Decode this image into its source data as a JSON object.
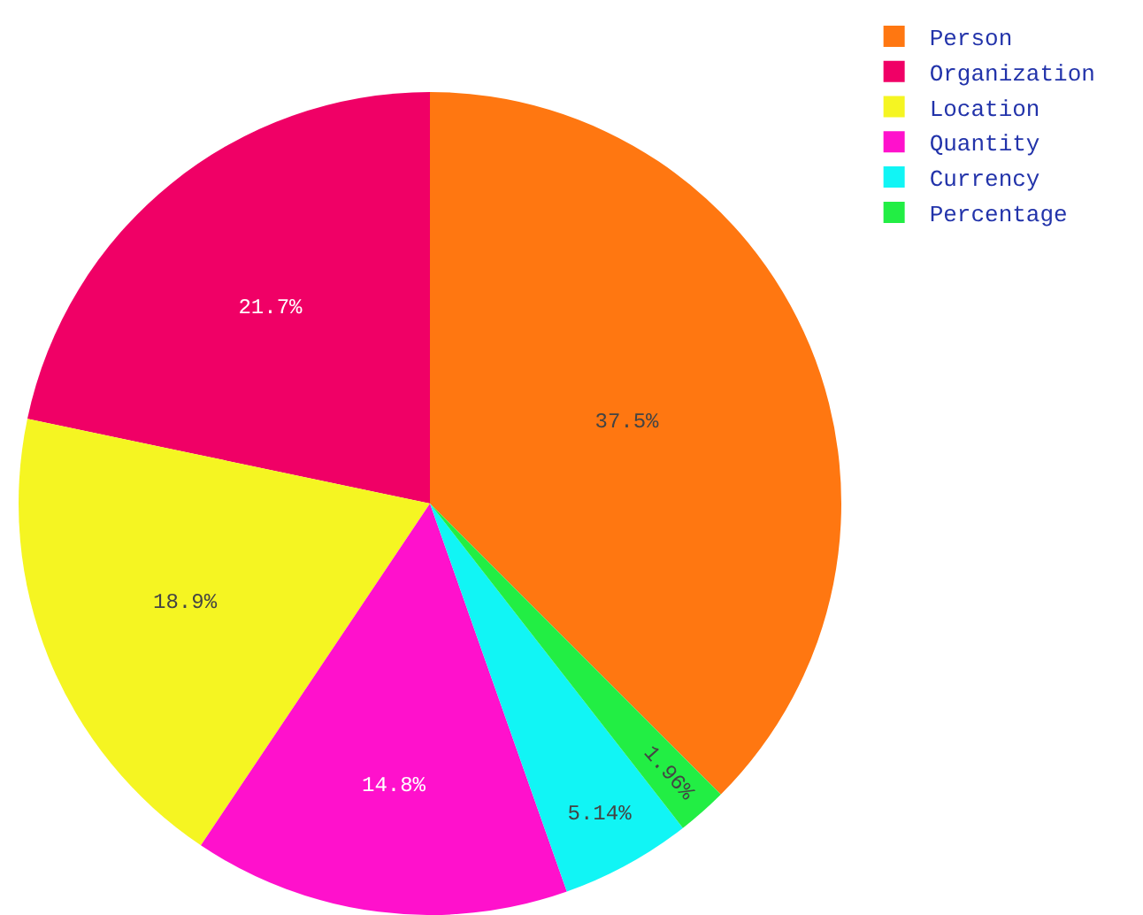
{
  "chart_data": {
    "type": "pie",
    "categories": [
      "Person",
      "Organization",
      "Location",
      "Quantity",
      "Currency",
      "Percentage"
    ],
    "values": [
      37.5,
      21.7,
      18.9,
      14.8,
      5.14,
      1.96
    ],
    "value_labels": [
      "37.5%",
      "21.7%",
      "18.9%",
      "14.8%",
      "5.14%",
      "1.96%"
    ],
    "colors": [
      "#ff7711",
      "#f00066",
      "#f5f522",
      "#ff11cc",
      "#11f5f5",
      "#22ee44"
    ],
    "legend": "top right"
  }
}
